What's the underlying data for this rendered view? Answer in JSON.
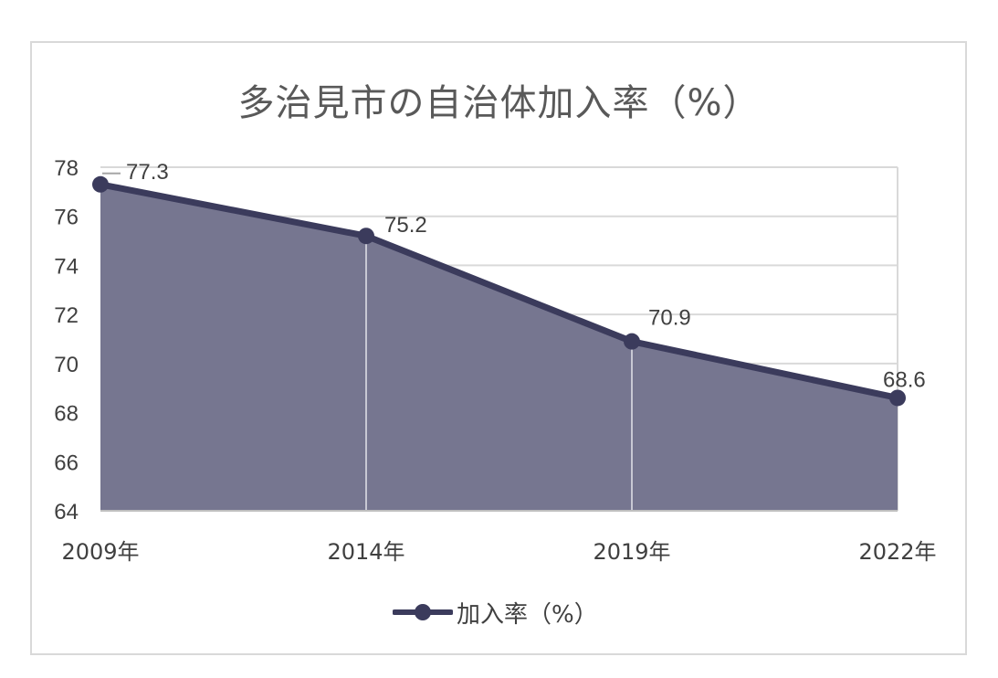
{
  "chart_data": {
    "type": "area",
    "title": "多治見市の自治体加入率（%）",
    "categories": [
      "2009年",
      "2014年",
      "2019年",
      "2022年"
    ],
    "series": [
      {
        "name": "加入率（%）",
        "values": [
          77.3,
          75.2,
          70.9,
          68.6
        ]
      }
    ],
    "data_labels": [
      "77.3",
      "75.2",
      "70.9",
      "68.6"
    ],
    "y_ticks": [
      "64",
      "66",
      "68",
      "70",
      "72",
      "74",
      "76",
      "78"
    ],
    "ylim": [
      64,
      78
    ],
    "grid": true,
    "legend_position": "bottom",
    "colors": {
      "area_fill": "#767690",
      "line": "#3b3b5c",
      "marker": "#3b3b5c",
      "grid": "#d9d9d9",
      "text": "#404040"
    }
  }
}
